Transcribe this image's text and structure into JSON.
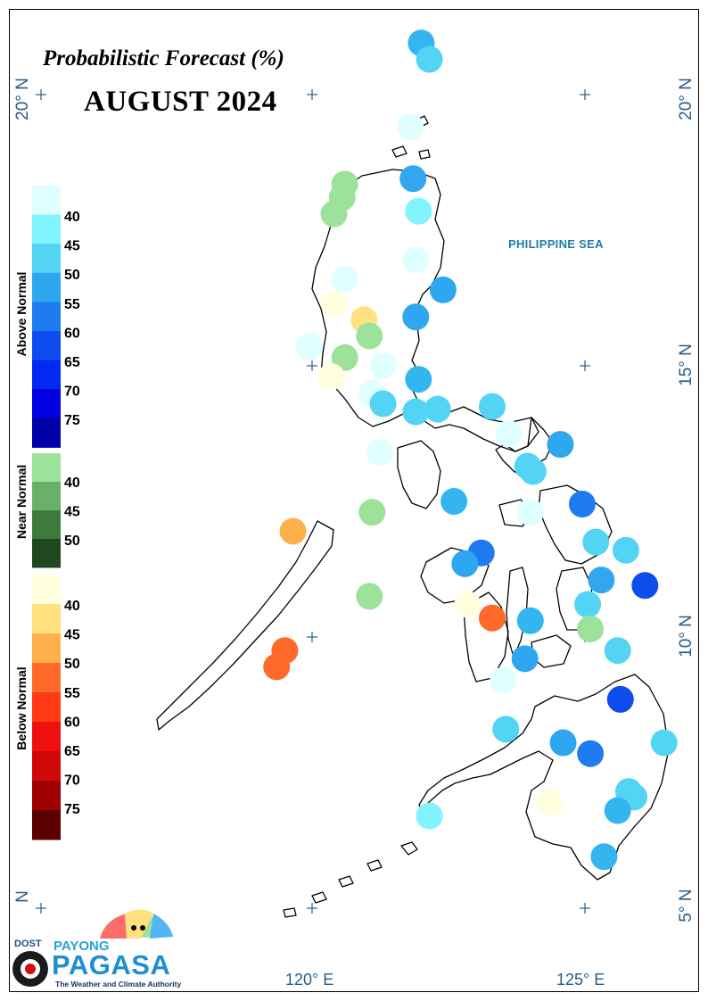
{
  "title": "Probabilistic Forecast (%)",
  "subtitle": "AUGUST 2024",
  "sea_label": "PHILIPPINE SEA",
  "lat_labels": {
    "lat20": "20° N",
    "lat15": "15° N",
    "lat10": "10° N",
    "lat5": "5° N",
    "lat5_left": "N",
    "lat20_left": "20° N"
  },
  "lon_labels": {
    "lon120": "120° E",
    "lon125": "125° E"
  },
  "legend": {
    "above_normal": {
      "label": "Above Normal",
      "colors": [
        "#e0ffff",
        "#80f4ff",
        "#54d4f4",
        "#2ea6f0",
        "#1f7cf0",
        "#0f4cee",
        "#0328f2",
        "#0000e0",
        "#0000a8"
      ],
      "ticks": [
        "40",
        "45",
        "50",
        "55",
        "60",
        "65",
        "70",
        "75"
      ]
    },
    "near_normal": {
      "label": "Near Normal",
      "colors": [
        "#9de29b",
        "#6ab06a",
        "#3f7a3d",
        "#1f4720"
      ],
      "ticks": [
        "40",
        "45",
        "50"
      ]
    },
    "below_normal": {
      "label": "Below Normal",
      "colors": [
        "#ffffe0",
        "#ffe180",
        "#ffb04a",
        "#ff6a2a",
        "#ff3a14",
        "#f01010",
        "#d00808",
        "#a00000",
        "#5a0000"
      ],
      "ticks": [
        "40",
        "45",
        "50",
        "55",
        "60",
        "65",
        "70",
        "75"
      ]
    }
  },
  "stations": [
    {
      "lon": 122.0,
      "lat": 20.95,
      "color": "#33b6ef"
    },
    {
      "lon": 122.15,
      "lat": 20.65,
      "color": "#54d4f4"
    },
    {
      "lon": 121.8,
      "lat": 19.4,
      "color": "#e0ffff"
    },
    {
      "lon": 121.85,
      "lat": 18.45,
      "color": "#33a6f0"
    },
    {
      "lon": 120.6,
      "lat": 18.35,
      "color": "#9de29b"
    },
    {
      "lon": 120.55,
      "lat": 18.1,
      "color": "#9de29b"
    },
    {
      "lon": 121.95,
      "lat": 17.85,
      "color": "#80f4ff"
    },
    {
      "lon": 120.4,
      "lat": 17.8,
      "color": "#9de29b"
    },
    {
      "lon": 121.9,
      "lat": 16.95,
      "color": "#e0ffff"
    },
    {
      "lon": 120.6,
      "lat": 16.6,
      "color": "#e0ffff"
    },
    {
      "lon": 122.4,
      "lat": 16.4,
      "color": "#2ea6f0"
    },
    {
      "lon": 120.4,
      "lat": 16.15,
      "color": "#ffffe0"
    },
    {
      "lon": 121.9,
      "lat": 15.9,
      "color": "#2ea6f0"
    },
    {
      "lon": 120.95,
      "lat": 15.85,
      "color": "#ffe180"
    },
    {
      "lon": 121.05,
      "lat": 15.55,
      "color": "#9de29b"
    },
    {
      "lon": 119.95,
      "lat": 15.35,
      "color": "#e0ffff"
    },
    {
      "lon": 120.6,
      "lat": 15.15,
      "color": "#9de29b"
    },
    {
      "lon": 121.3,
      "lat": 15.0,
      "color": "#e0ffff"
    },
    {
      "lon": 120.35,
      "lat": 14.8,
      "color": "#ffffe0"
    },
    {
      "lon": 121.95,
      "lat": 14.75,
      "color": "#33b6ef"
    },
    {
      "lon": 121.1,
      "lat": 14.5,
      "color": "#e0ffff"
    },
    {
      "lon": 121.3,
      "lat": 14.3,
      "color": "#54d4f4"
    },
    {
      "lon": 121.9,
      "lat": 14.15,
      "color": "#54d4f4"
    },
    {
      "lon": 122.3,
      "lat": 14.2,
      "color": "#54d4f4"
    },
    {
      "lon": 123.3,
      "lat": 14.25,
      "color": "#54d4f4"
    },
    {
      "lon": 123.6,
      "lat": 13.75,
      "color": "#e0ffff"
    },
    {
      "lon": 124.55,
      "lat": 13.55,
      "color": "#2ea6f0"
    },
    {
      "lon": 121.25,
      "lat": 13.4,
      "color": "#e0ffff"
    },
    {
      "lon": 123.95,
      "lat": 13.15,
      "color": "#54d4f4"
    },
    {
      "lon": 124.05,
      "lat": 13.05,
      "color": "#54d4f4"
    },
    {
      "lon": 122.6,
      "lat": 12.5,
      "color": "#33b6ef"
    },
    {
      "lon": 124.95,
      "lat": 12.45,
      "color": "#1f7cf0"
    },
    {
      "lon": 121.1,
      "lat": 12.3,
      "color": "#9de29b"
    },
    {
      "lon": 124.0,
      "lat": 12.3,
      "color": "#e0ffff"
    },
    {
      "lon": 119.65,
      "lat": 11.95,
      "color": "#ffb04a"
    },
    {
      "lon": 125.2,
      "lat": 11.75,
      "color": "#54d4f4"
    },
    {
      "lon": 125.75,
      "lat": 11.6,
      "color": "#54d4f4"
    },
    {
      "lon": 123.1,
      "lat": 11.55,
      "color": "#1f7cf0"
    },
    {
      "lon": 122.8,
      "lat": 11.35,
      "color": "#2ea6f0"
    },
    {
      "lon": 125.3,
      "lat": 11.05,
      "color": "#33a6f0"
    },
    {
      "lon": 126.1,
      "lat": 10.95,
      "color": "#0f4cee"
    },
    {
      "lon": 121.05,
      "lat": 10.75,
      "color": "#9de29b"
    },
    {
      "lon": 122.85,
      "lat": 10.6,
      "color": "#ffffe0"
    },
    {
      "lon": 125.05,
      "lat": 10.6,
      "color": "#54d4f4"
    },
    {
      "lon": 123.3,
      "lat": 10.35,
      "color": "#ff6a2a"
    },
    {
      "lon": 124.0,
      "lat": 10.3,
      "color": "#33b6ef"
    },
    {
      "lon": 125.1,
      "lat": 10.15,
      "color": "#9de29b"
    },
    {
      "lon": 119.5,
      "lat": 9.75,
      "color": "#ff6a2a"
    },
    {
      "lon": 125.6,
      "lat": 9.75,
      "color": "#54d4f4"
    },
    {
      "lon": 119.35,
      "lat": 9.45,
      "color": "#ff6a2a"
    },
    {
      "lon": 123.9,
      "lat": 9.6,
      "color": "#2ea6f0"
    },
    {
      "lon": 123.5,
      "lat": 9.2,
      "color": "#e0ffff"
    },
    {
      "lon": 125.65,
      "lat": 8.85,
      "color": "#0f4cee"
    },
    {
      "lon": 123.55,
      "lat": 8.3,
      "color": "#54d4f4"
    },
    {
      "lon": 124.6,
      "lat": 8.05,
      "color": "#2ea6f0"
    },
    {
      "lon": 126.45,
      "lat": 8.05,
      "color": "#54d4f4"
    },
    {
      "lon": 125.1,
      "lat": 7.85,
      "color": "#1f7cf0"
    },
    {
      "lon": 125.8,
      "lat": 7.15,
      "color": "#54d4f4"
    },
    {
      "lon": 125.9,
      "lat": 7.05,
      "color": "#54d4f4"
    },
    {
      "lon": 124.35,
      "lat": 6.95,
      "color": "#ffffe0"
    },
    {
      "lon": 125.6,
      "lat": 6.8,
      "color": "#33b6ef"
    },
    {
      "lon": 122.15,
      "lat": 6.7,
      "color": "#80f4ff"
    },
    {
      "lon": 125.35,
      "lat": 5.95,
      "color": "#33b6ef"
    }
  ]
}
